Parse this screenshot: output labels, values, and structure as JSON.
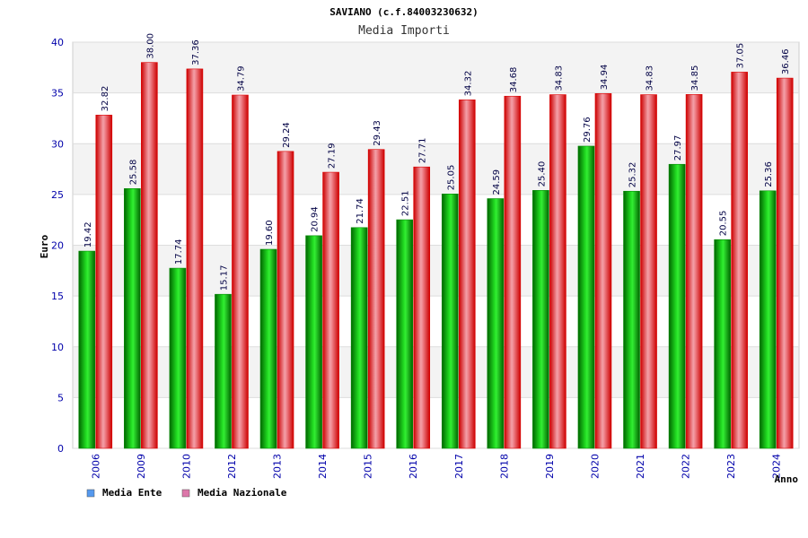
{
  "chart_data": {
    "type": "bar",
    "title": "SAVIANO (c.f.84003230632)",
    "subtitle": "Media Importi",
    "ylabel": "Euro",
    "xlabel": "Anno",
    "ylim": [
      0,
      40
    ],
    "yticks": [
      0,
      5,
      10,
      15,
      20,
      25,
      30,
      35,
      40
    ],
    "grid": true,
    "legend_position": "bottom-left",
    "categories": [
      "2006",
      "2009",
      "2010",
      "2012",
      "2013",
      "2014",
      "2015",
      "2016",
      "2017",
      "2018",
      "2019",
      "2020",
      "2021",
      "2022",
      "2023",
      "2024"
    ],
    "series": [
      {
        "name": "Media Ente",
        "legend_color": "#5599ee",
        "color": "#00a000",
        "values": [
          19.42,
          25.58,
          17.74,
          15.17,
          19.6,
          20.94,
          21.74,
          22.51,
          25.05,
          24.59,
          25.4,
          29.76,
          25.32,
          27.97,
          20.55,
          25.36
        ],
        "labels": [
          "19.42",
          "25.58",
          "17.74",
          "15.17",
          "19.60",
          "20.94",
          "21.74",
          "22.51",
          "25.05",
          "24.59",
          "25.40",
          "29.76",
          "25.32",
          "27.97",
          "20.55",
          "25.36"
        ]
      },
      {
        "name": "Media Nazionale",
        "legend_color": "#dd77aa",
        "color": "#e01020",
        "values": [
          32.82,
          38.0,
          37.36,
          34.79,
          29.24,
          27.19,
          29.43,
          27.71,
          34.32,
          34.68,
          34.83,
          34.94,
          34.83,
          34.85,
          37.05,
          36.46
        ],
        "labels": [
          "32.82",
          "38.00",
          "37.36",
          "34.79",
          "29.24",
          "27.19",
          "29.43",
          "27.71",
          "34.32",
          "34.68",
          "34.83",
          "34.94",
          "34.83",
          "34.85",
          "37.05",
          "36.46"
        ]
      }
    ]
  }
}
